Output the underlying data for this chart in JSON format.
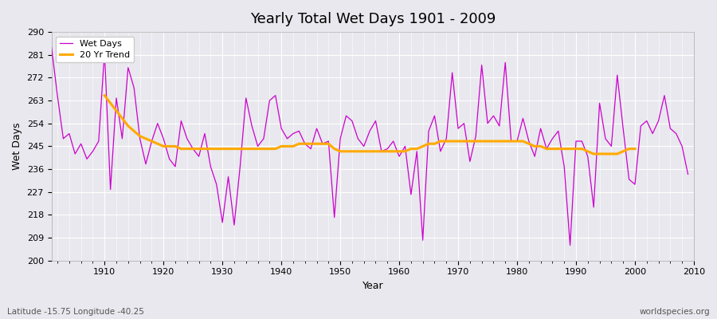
{
  "title": "Yearly Total Wet Days 1901 - 2009",
  "xlabel": "Year",
  "ylabel": "Wet Days",
  "subtitle": "Latitude -15.75 Longitude -40.25",
  "watermark": "worldspecies.org",
  "ylim": [
    200,
    290
  ],
  "yticks": [
    200,
    209,
    218,
    227,
    236,
    245,
    254,
    263,
    272,
    281,
    290
  ],
  "wet_days_color": "#cc00cc",
  "trend_color": "#ffaa00",
  "bg_color": "#e8e8ee",
  "fig_bg_color": "#e8e8ee",
  "years": [
    1901,
    1902,
    1903,
    1904,
    1905,
    1906,
    1907,
    1908,
    1909,
    1910,
    1911,
    1912,
    1913,
    1914,
    1915,
    1916,
    1917,
    1918,
    1919,
    1920,
    1921,
    1922,
    1923,
    1924,
    1925,
    1926,
    1927,
    1928,
    1929,
    1930,
    1931,
    1932,
    1933,
    1934,
    1935,
    1936,
    1937,
    1938,
    1939,
    1940,
    1941,
    1942,
    1943,
    1944,
    1945,
    1946,
    1947,
    1948,
    1949,
    1950,
    1951,
    1952,
    1953,
    1954,
    1955,
    1956,
    1957,
    1958,
    1959,
    1960,
    1961,
    1962,
    1963,
    1964,
    1965,
    1966,
    1967,
    1968,
    1969,
    1970,
    1971,
    1972,
    1973,
    1974,
    1975,
    1976,
    1977,
    1978,
    1979,
    1980,
    1981,
    1982,
    1983,
    1984,
    1985,
    1986,
    1987,
    1988,
    1989,
    1990,
    1991,
    1992,
    1993,
    1994,
    1995,
    1996,
    1997,
    1998,
    1999,
    2000,
    2001,
    2002,
    2003,
    2004,
    2005,
    2006,
    2007,
    2008,
    2009
  ],
  "wet_days": [
    284,
    265,
    248,
    250,
    242,
    246,
    240,
    243,
    247,
    282,
    228,
    264,
    248,
    276,
    268,
    248,
    238,
    247,
    254,
    248,
    240,
    237,
    255,
    248,
    244,
    241,
    250,
    237,
    230,
    215,
    233,
    214,
    237,
    264,
    253,
    245,
    248,
    263,
    265,
    252,
    248,
    250,
    251,
    246,
    244,
    252,
    246,
    247,
    217,
    248,
    257,
    255,
    248,
    245,
    251,
    255,
    243,
    244,
    247,
    241,
    245,
    226,
    243,
    208,
    251,
    257,
    243,
    248,
    274,
    252,
    254,
    239,
    249,
    277,
    254,
    257,
    253,
    278,
    247,
    247,
    256,
    247,
    241,
    252,
    244,
    248,
    251,
    237,
    206,
    247,
    247,
    241,
    221,
    262,
    248,
    245,
    273,
    252,
    232,
    230,
    253,
    255,
    250,
    255,
    265,
    252,
    250,
    245,
    234
  ],
  "trend_values": [
    null,
    null,
    null,
    null,
    null,
    null,
    null,
    null,
    null,
    265,
    262,
    259,
    256,
    253,
    251,
    249,
    248,
    247,
    246,
    245,
    245,
    245,
    244,
    244,
    244,
    244,
    244,
    244,
    244,
    244,
    244,
    244,
    244,
    244,
    244,
    244,
    244,
    244,
    244,
    245,
    245,
    245,
    246,
    246,
    246,
    246,
    246,
    246,
    244,
    243,
    243,
    243,
    243,
    243,
    243,
    243,
    243,
    243,
    243,
    243,
    243,
    244,
    244,
    245,
    246,
    246,
    247,
    247,
    247,
    247,
    247,
    247,
    247,
    247,
    247,
    247,
    247,
    247,
    247,
    247,
    247,
    246,
    245,
    245,
    244,
    244,
    244,
    244,
    244,
    244,
    244,
    243,
    242,
    242,
    242,
    242,
    242,
    243,
    244,
    244,
    null,
    null,
    null,
    null,
    null,
    null,
    null,
    null,
    null
  ]
}
